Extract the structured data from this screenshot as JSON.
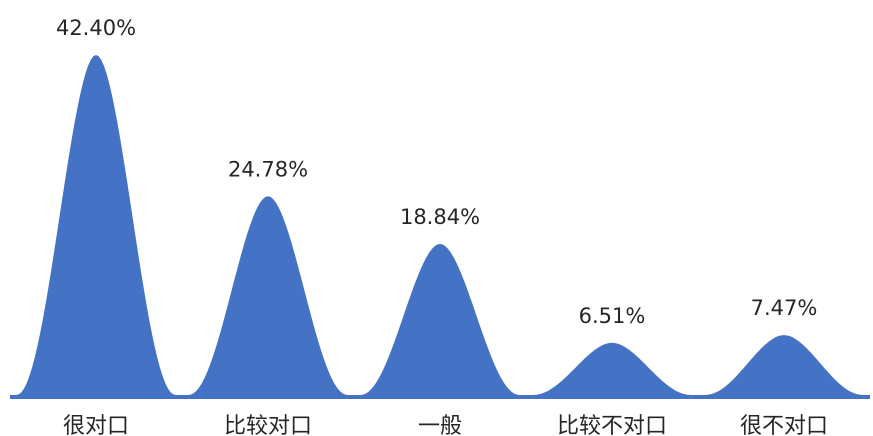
{
  "chart_data": {
    "type": "area",
    "shape": "peaked",
    "title": "",
    "xlabel": "",
    "ylabel": "",
    "categories": [
      "很对口",
      "比较对口",
      "一般",
      "比较不对口",
      "很不对口"
    ],
    "values": [
      42.4,
      24.78,
      18.84,
      6.51,
      7.47
    ],
    "data_labels": [
      "42.40%",
      "24.78%",
      "18.84%",
      "6.51%",
      "7.47%"
    ],
    "unit": "%",
    "ylim": [
      0,
      42.4
    ],
    "grid": false,
    "legend": "none",
    "colors": {
      "fill": "#4472C4",
      "axis": "#4472C4",
      "text": "#262626"
    }
  }
}
